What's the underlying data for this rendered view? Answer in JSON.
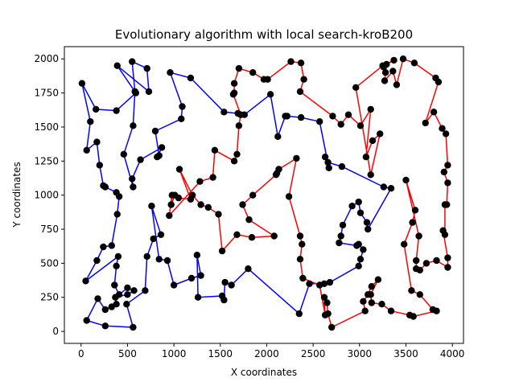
{
  "chart_data": {
    "type": "line",
    "title": "Evolutionary algorithm with local search-kroB200",
    "xlabel": "X coordinates",
    "ylabel": "Y coordinates",
    "xlim": [
      -180,
      4120
    ],
    "ylim": [
      -88,
      2090
    ],
    "xticks": [
      0,
      500,
      1000,
      1500,
      2000,
      2500,
      3000,
      3500,
      4000
    ],
    "yticks": [
      0,
      250,
      500,
      750,
      1000,
      1250,
      1500,
      1750,
      2000
    ],
    "grid": false,
    "node_color": "#000000",
    "series": [
      {
        "color": "#0000ff",
        "points": [
          [
            10,
            1820
          ],
          [
            100,
            1540
          ],
          [
            60,
            1330
          ],
          [
            170,
            1390
          ],
          [
            200,
            1220
          ],
          [
            240,
            1070
          ],
          [
            260,
            1060
          ],
          [
            380,
            1020
          ],
          [
            410,
            990
          ],
          [
            390,
            860
          ],
          [
            330,
            630
          ],
          [
            240,
            620
          ],
          [
            170,
            520
          ],
          [
            50,
            370
          ],
          [
            400,
            550
          ],
          [
            380,
            480
          ],
          [
            360,
            340
          ],
          [
            410,
            270
          ],
          [
            500,
            320
          ],
          [
            570,
            300
          ],
          [
            500,
            270
          ],
          [
            370,
            250
          ],
          [
            380,
            200
          ],
          [
            330,
            180
          ],
          [
            260,
            160
          ],
          [
            180,
            240
          ],
          [
            60,
            80
          ],
          [
            260,
            40
          ],
          [
            560,
            30
          ],
          [
            490,
            200
          ],
          [
            690,
            300
          ],
          [
            710,
            550
          ],
          [
            780,
            680
          ],
          [
            860,
            710
          ],
          [
            760,
            920
          ],
          [
            840,
            530
          ],
          [
            930,
            520
          ],
          [
            1000,
            340
          ],
          [
            1190,
            390
          ],
          [
            1290,
            410
          ],
          [
            1250,
            560
          ],
          [
            1260,
            250
          ],
          [
            1520,
            260
          ],
          [
            1540,
            230
          ],
          [
            1550,
            360
          ],
          [
            1620,
            340
          ],
          [
            1800,
            460
          ],
          [
            2350,
            130
          ],
          [
            2460,
            350
          ],
          [
            2620,
            350
          ],
          [
            2680,
            360
          ],
          [
            2990,
            480
          ],
          [
            3010,
            530
          ],
          [
            3040,
            600
          ],
          [
            2990,
            640
          ],
          [
            2970,
            630
          ],
          [
            2780,
            650
          ],
          [
            2800,
            700
          ],
          [
            2820,
            780
          ],
          [
            2920,
            920
          ],
          [
            2990,
            950
          ],
          [
            3010,
            870
          ],
          [
            3080,
            800
          ],
          [
            3090,
            750
          ],
          [
            3340,
            1050
          ],
          [
            3260,
            1060
          ],
          [
            2810,
            1210
          ],
          [
            2660,
            1240
          ],
          [
            2630,
            1280
          ],
          [
            2670,
            1200
          ],
          [
            2570,
            1540
          ],
          [
            2370,
            1570
          ],
          [
            2220,
            1580
          ],
          [
            2200,
            1580
          ],
          [
            2120,
            1430
          ],
          [
            2040,
            1740
          ],
          [
            1760,
            1590
          ],
          [
            1690,
            1600
          ],
          [
            1540,
            1610
          ],
          [
            1180,
            1860
          ],
          [
            960,
            1900
          ],
          [
            1090,
            1650
          ],
          [
            1080,
            1560
          ],
          [
            800,
            1470
          ],
          [
            840,
            1290
          ],
          [
            820,
            1280
          ],
          [
            870,
            1350
          ],
          [
            640,
            1260
          ],
          [
            550,
            1120
          ],
          [
            560,
            1060
          ],
          [
            460,
            1300
          ],
          [
            560,
            1510
          ],
          [
            580,
            1760
          ],
          [
            550,
            1980
          ],
          [
            710,
            1930
          ],
          [
            730,
            1760
          ],
          [
            390,
            1950
          ],
          [
            580,
            1760
          ],
          [
            590,
            1750
          ],
          [
            380,
            1620
          ],
          [
            160,
            1630
          ],
          [
            10,
            1820
          ]
        ]
      },
      {
        "color": "#ff0000",
        "points": [
          [
            2260,
            1980
          ],
          [
            2370,
            1970
          ],
          [
            2400,
            1850
          ],
          [
            2360,
            1760
          ],
          [
            2710,
            1580
          ],
          [
            2800,
            1520
          ],
          [
            2880,
            1590
          ],
          [
            3010,
            1510
          ],
          [
            3120,
            1630
          ],
          [
            3070,
            1280
          ],
          [
            3140,
            1400
          ],
          [
            3220,
            1450
          ],
          [
            3120,
            1150
          ],
          [
            2960,
            1790
          ],
          [
            3250,
            1950
          ],
          [
            3370,
            1990
          ],
          [
            3290,
            1960
          ],
          [
            3260,
            1940
          ],
          [
            3280,
            1900
          ],
          [
            3270,
            1840
          ],
          [
            3360,
            1910
          ],
          [
            3400,
            1810
          ],
          [
            3470,
            2000
          ],
          [
            3590,
            1970
          ],
          [
            3820,
            1860
          ],
          [
            3850,
            1830
          ],
          [
            3710,
            1530
          ],
          [
            3800,
            1610
          ],
          [
            3890,
            1490
          ],
          [
            3930,
            1450
          ],
          [
            3950,
            1220
          ],
          [
            3910,
            1170
          ],
          [
            3950,
            1090
          ],
          [
            3940,
            930
          ],
          [
            3920,
            930
          ],
          [
            3920,
            710
          ],
          [
            3900,
            740
          ],
          [
            3950,
            540
          ],
          [
            3950,
            470
          ],
          [
            3830,
            520
          ],
          [
            3720,
            500
          ],
          [
            3650,
            450
          ],
          [
            3610,
            460
          ],
          [
            3610,
            520
          ],
          [
            3640,
            700
          ],
          [
            3500,
            1110
          ],
          [
            3600,
            890
          ],
          [
            3570,
            800
          ],
          [
            3480,
            640
          ],
          [
            3560,
            300
          ],
          [
            3650,
            270
          ],
          [
            3790,
            160
          ],
          [
            3830,
            150
          ],
          [
            3580,
            110
          ],
          [
            3540,
            120
          ],
          [
            3340,
            150
          ],
          [
            3240,
            200
          ],
          [
            3130,
            210
          ],
          [
            3120,
            270
          ],
          [
            3200,
            380
          ],
          [
            3130,
            330
          ],
          [
            3090,
            270
          ],
          [
            3040,
            220
          ],
          [
            3060,
            150
          ],
          [
            2700,
            30
          ],
          [
            2660,
            130
          ],
          [
            2650,
            210
          ],
          [
            2620,
            250
          ],
          [
            2630,
            120
          ],
          [
            2570,
            340
          ],
          [
            2390,
            390
          ],
          [
            2360,
            530
          ],
          [
            2380,
            640
          ],
          [
            2360,
            700
          ],
          [
            2240,
            990
          ],
          [
            2320,
            1270
          ],
          [
            2130,
            1190
          ],
          [
            2110,
            1160
          ],
          [
            2100,
            1150
          ],
          [
            1850,
            1000
          ],
          [
            1740,
            930
          ],
          [
            1810,
            820
          ],
          [
            2080,
            700
          ],
          [
            1840,
            690
          ],
          [
            1680,
            710
          ],
          [
            1520,
            590
          ],
          [
            1480,
            860
          ],
          [
            1370,
            910
          ],
          [
            1290,
            930
          ],
          [
            1200,
            1000
          ],
          [
            1060,
            1190
          ],
          [
            1180,
            970
          ],
          [
            1050,
            980
          ],
          [
            1010,
            1000
          ],
          [
            970,
            930
          ],
          [
            980,
            1000
          ],
          [
            950,
            850
          ],
          [
            1280,
            1100
          ],
          [
            1420,
            1130
          ],
          [
            1440,
            1330
          ],
          [
            1650,
            1250
          ],
          [
            1680,
            1300
          ],
          [
            1700,
            1510
          ],
          [
            1720,
            1590
          ],
          [
            1640,
            1740
          ],
          [
            1650,
            1750
          ],
          [
            1650,
            1820
          ],
          [
            1700,
            1930
          ],
          [
            1850,
            1900
          ],
          [
            1970,
            1850
          ],
          [
            2010,
            1850
          ],
          [
            2260,
            1980
          ]
        ]
      }
    ]
  }
}
